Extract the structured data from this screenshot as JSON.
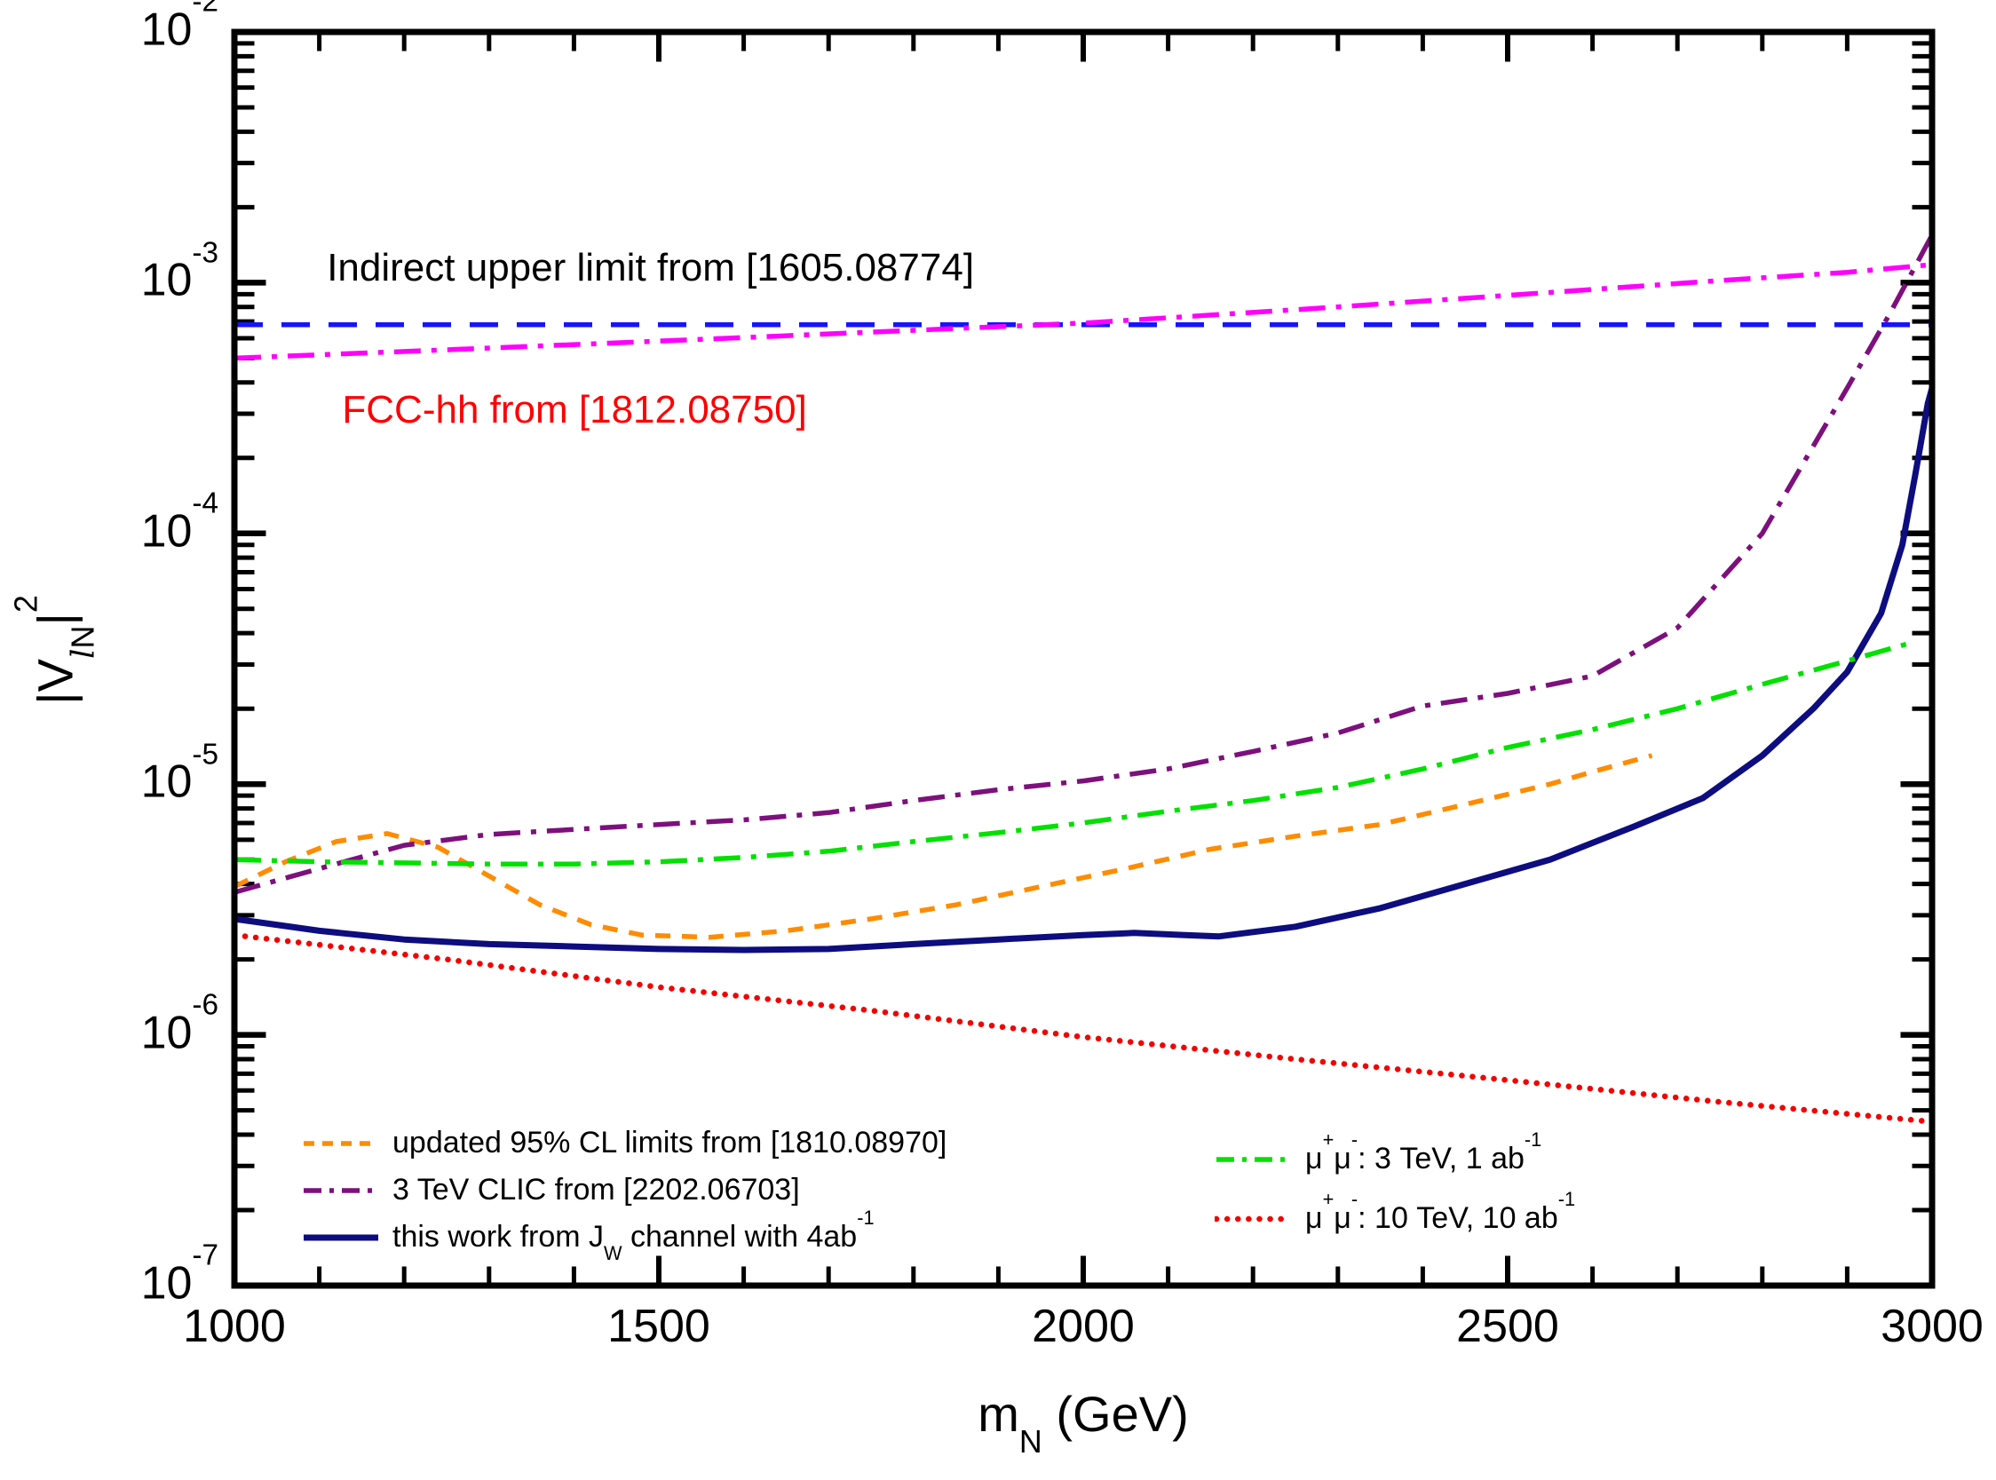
{
  "chart_data": {
    "type": "line",
    "title": "",
    "xlabel": "m_{N} (GeV)",
    "ylabel": "|V&{l}_{N}|^{2}",
    "x_range": [
      1000,
      3000
    ],
    "x_major_ticks": [
      1000,
      1500,
      2000,
      2500,
      3000
    ],
    "x_minor_step": 100,
    "y_log_range": [
      -7,
      -2
    ],
    "y_tick_labels": [
      "10^{-2}",
      "10^{-3}",
      "10^{-4}",
      "10^{-5}",
      "10^{-6}",
      "10^{-7}"
    ],
    "grid": false,
    "legend_position": "bottom-inside",
    "annotations": [
      {
        "text": "Indirect upper limit from [1605.08774]",
        "color": "#000000",
        "anchor_gev": 1109,
        "anchor_value": 0.00114
      },
      {
        "text": "FCC-hh from [1812.08750]",
        "color": "#fe0000",
        "anchor_gev": 1127,
        "anchor_value": 0.00031
      }
    ],
    "series": [
      {
        "name": "indirect-upper-limit",
        "label": "Indirect upper limit from [1605.08774]",
        "color": "#1414ff",
        "style": "long-dash",
        "points": [
          [
            1000,
            0.00068
          ],
          [
            3000,
            0.00068
          ]
        ]
      },
      {
        "name": "fcc-hh",
        "label": "FCC-hh from [1812.08750]",
        "color": "#ff00ff",
        "style": "dash-dot",
        "points": [
          [
            1000,
            0.0005
          ],
          [
            1250,
            0.00054
          ],
          [
            1500,
            0.000585
          ],
          [
            1750,
            0.000635
          ],
          [
            2000,
            0.00069
          ],
          [
            2250,
            0.00078
          ],
          [
            2500,
            0.00089
          ],
          [
            2750,
            0.00102
          ],
          [
            2900,
            0.0011
          ],
          [
            3000,
            0.00118
          ]
        ]
      },
      {
        "name": "updated-95cl",
        "label": "updated 95% CL limits from [1810.08970]",
        "color": "#ff8c00",
        "style": "dash",
        "points": [
          [
            1000,
            3.9e-06
          ],
          [
            1060,
            4.9e-06
          ],
          [
            1120,
            5.9e-06
          ],
          [
            1180,
            6.35e-06
          ],
          [
            1240,
            5.6e-06
          ],
          [
            1300,
            4.3e-06
          ],
          [
            1360,
            3.3e-06
          ],
          [
            1420,
            2.75e-06
          ],
          [
            1480,
            2.5e-06
          ],
          [
            1560,
            2.45e-06
          ],
          [
            1650,
            2.6e-06
          ],
          [
            1750,
            2.9e-06
          ],
          [
            1850,
            3.3e-06
          ],
          [
            1950,
            3.9e-06
          ],
          [
            2050,
            4.6e-06
          ],
          [
            2150,
            5.5e-06
          ],
          [
            2250,
            6.2e-06
          ],
          [
            2350,
            6.9e-06
          ],
          [
            2450,
            8.3e-06
          ],
          [
            2550,
            1e-05
          ],
          [
            2600,
            1.12e-05
          ],
          [
            2670,
            1.3e-05
          ]
        ]
      },
      {
        "name": "clic-3tev",
        "label": "3 TeV CLIC from [2202.06703]",
        "color": "#7d107d",
        "style": "dash-dot",
        "points": [
          [
            1000,
            3.7e-06
          ],
          [
            1100,
            4.6e-06
          ],
          [
            1200,
            5.7e-06
          ],
          [
            1300,
            6.3e-06
          ],
          [
            1400,
            6.6e-06
          ],
          [
            1500,
            6.9e-06
          ],
          [
            1600,
            7.2e-06
          ],
          [
            1700,
            7.7e-06
          ],
          [
            1800,
            8.6e-06
          ],
          [
            1900,
            9.5e-06
          ],
          [
            2000,
            1.03e-05
          ],
          [
            2100,
            1.15e-05
          ],
          [
            2200,
            1.35e-05
          ],
          [
            2300,
            1.6e-05
          ],
          [
            2400,
            2.05e-05
          ],
          [
            2500,
            2.3e-05
          ],
          [
            2600,
            2.7e-05
          ],
          [
            2700,
            4.2e-05
          ],
          [
            2800,
            0.0001
          ],
          [
            2900,
            0.00038
          ],
          [
            2950,
            0.00075
          ],
          [
            3000,
            0.00155
          ]
        ]
      },
      {
        "name": "this-work",
        "label": "this work from J_{W} channel with 4ab^{-1}",
        "color": "#0d0d80",
        "style": "solid",
        "points": [
          [
            1000,
            2.9e-06
          ],
          [
            1100,
            2.6e-06
          ],
          [
            1200,
            2.4e-06
          ],
          [
            1300,
            2.3e-06
          ],
          [
            1400,
            2.25e-06
          ],
          [
            1500,
            2.2e-06
          ],
          [
            1600,
            2.18e-06
          ],
          [
            1700,
            2.2e-06
          ],
          [
            1800,
            2.3e-06
          ],
          [
            1900,
            2.4e-06
          ],
          [
            2000,
            2.5e-06
          ],
          [
            2060,
            2.55e-06
          ],
          [
            2120,
            2.5e-06
          ],
          [
            2160,
            2.47e-06
          ],
          [
            2250,
            2.7e-06
          ],
          [
            2350,
            3.2e-06
          ],
          [
            2450,
            4e-06
          ],
          [
            2550,
            5e-06
          ],
          [
            2650,
            6.8e-06
          ],
          [
            2730,
            8.8e-06
          ],
          [
            2800,
            1.3e-05
          ],
          [
            2860,
            2e-05
          ],
          [
            2900,
            2.8e-05
          ],
          [
            2940,
            4.8e-05
          ],
          [
            2965,
            9e-05
          ],
          [
            2980,
            0.00017
          ],
          [
            2995,
            0.00033
          ],
          [
            3000,
            0.00038
          ]
        ]
      },
      {
        "name": "mumu-3tev",
        "label": "μ^{+}μ^{-}: 3 TeV, 1 ab^{-1}",
        "color": "#00e100",
        "style": "dash-dot",
        "points": [
          [
            1000,
            5e-06
          ],
          [
            1100,
            4.9e-06
          ],
          [
            1200,
            4.85e-06
          ],
          [
            1300,
            4.8e-06
          ],
          [
            1400,
            4.8e-06
          ],
          [
            1500,
            4.9e-06
          ],
          [
            1600,
            5.1e-06
          ],
          [
            1700,
            5.4e-06
          ],
          [
            1800,
            5.9e-06
          ],
          [
            1900,
            6.4e-06
          ],
          [
            2000,
            7e-06
          ],
          [
            2100,
            7.8e-06
          ],
          [
            2200,
            8.6e-06
          ],
          [
            2300,
            9.7e-06
          ],
          [
            2400,
            1.15e-05
          ],
          [
            2500,
            1.4e-05
          ],
          [
            2600,
            1.65e-05
          ],
          [
            2700,
            2e-05
          ],
          [
            2800,
            2.5e-05
          ],
          [
            2900,
            3.1e-05
          ],
          [
            2980,
            3.7e-05
          ]
        ]
      },
      {
        "name": "mumu-10tev",
        "label": "μ^{+}μ^{-}: 10 TeV, 10 ab^{-1}",
        "color": "#f40000",
        "style": "dotted",
        "points": [
          [
            1000,
            2.5e-06
          ],
          [
            1250,
            2e-06
          ],
          [
            1500,
            1.55e-06
          ],
          [
            1750,
            1.25e-06
          ],
          [
            2000,
            9.8e-07
          ],
          [
            2250,
            8e-07
          ],
          [
            2500,
            6.6e-07
          ],
          [
            2750,
            5.4e-07
          ],
          [
            3000,
            4.5e-07
          ]
        ]
      }
    ]
  },
  "legend": {
    "col1": [
      "updated-95cl",
      "clic-3tev",
      "this-work"
    ],
    "col2": [
      "mumu-3tev",
      "mumu-10tev"
    ]
  }
}
